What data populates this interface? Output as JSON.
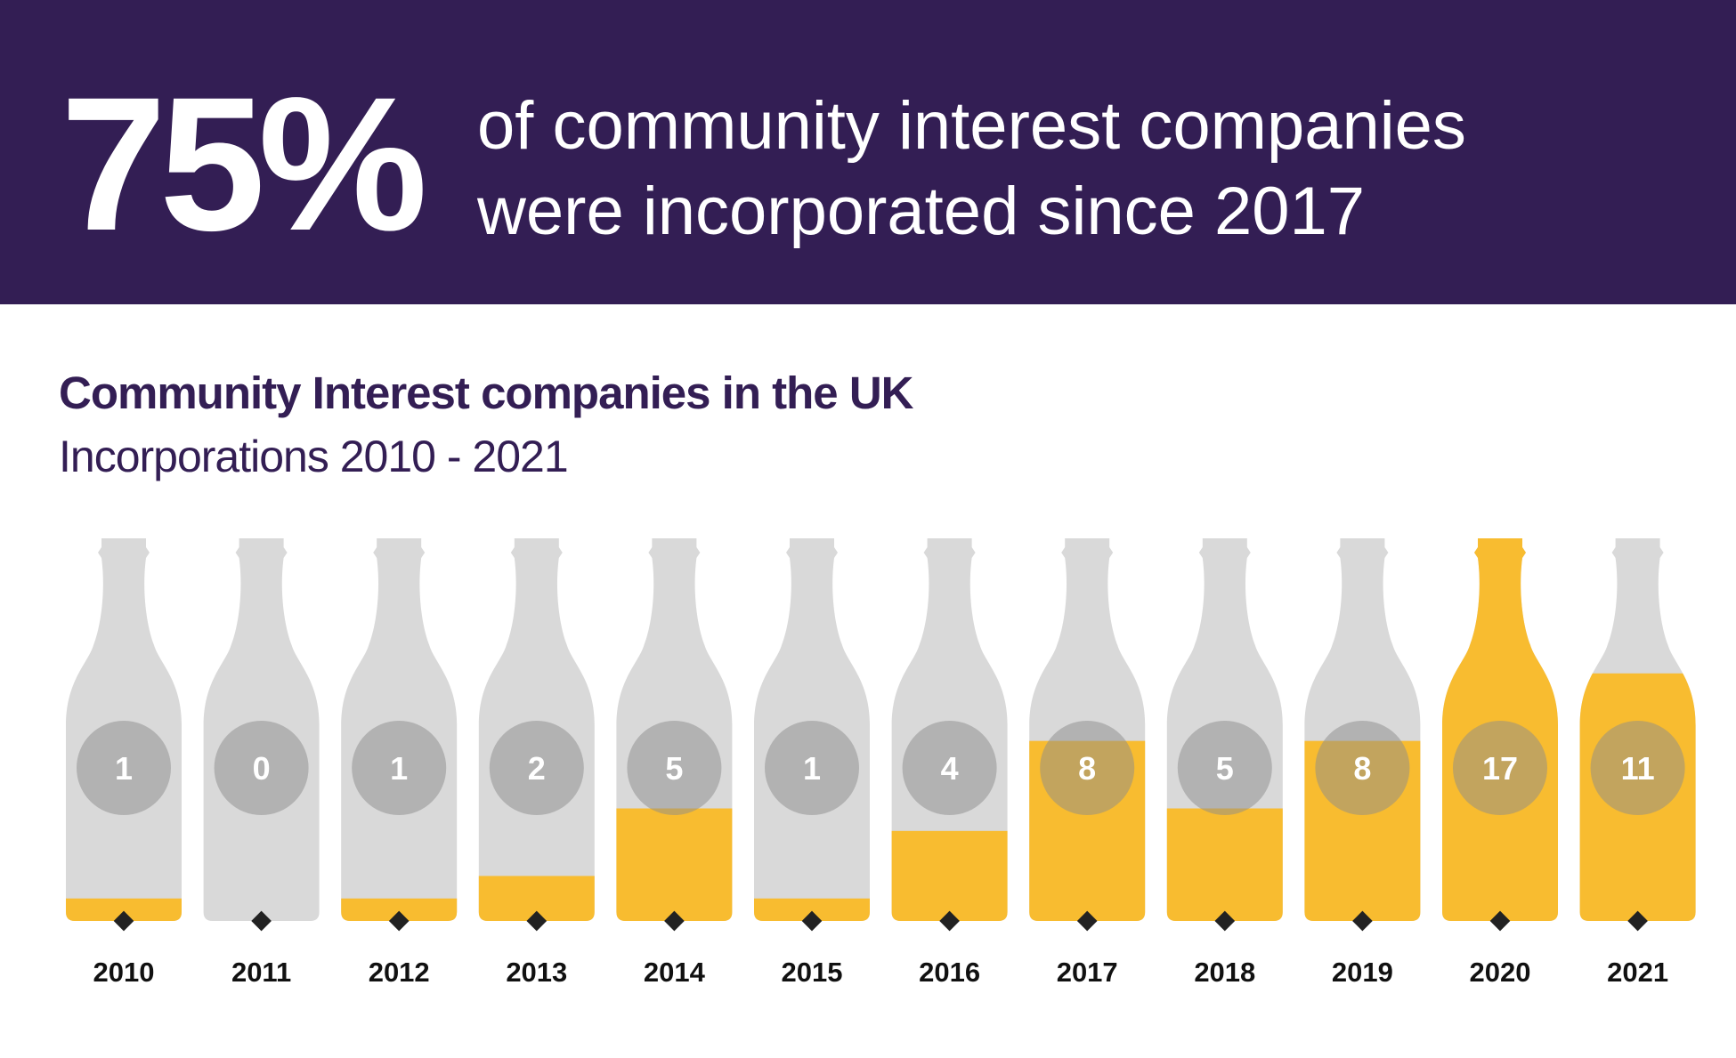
{
  "headline": {
    "percent": "75%",
    "line1": "of community interest companies",
    "line2": "were incorporated since 2017"
  },
  "chart_title": "Community Interest companies in the UK",
  "chart_subtitle": "Incorporations 2010 - 2021",
  "colors": {
    "banner": "#331e54",
    "title": "#331e54",
    "bottle_empty": "#d9d9d9",
    "fill": "#f8bc30",
    "badge": "#8c8c8c",
    "badge_text": "#ffffff",
    "marker": "#222222"
  },
  "chart_data": {
    "type": "bar",
    "style": "bottle fill level per year",
    "categories": [
      "2010",
      "2011",
      "2012",
      "2013",
      "2014",
      "2015",
      "2016",
      "2017",
      "2018",
      "2019",
      "2020",
      "2021"
    ],
    "values": [
      1,
      0,
      1,
      2,
      5,
      1,
      4,
      8,
      5,
      8,
      17,
      11
    ],
    "ylim": [
      0,
      17
    ]
  }
}
